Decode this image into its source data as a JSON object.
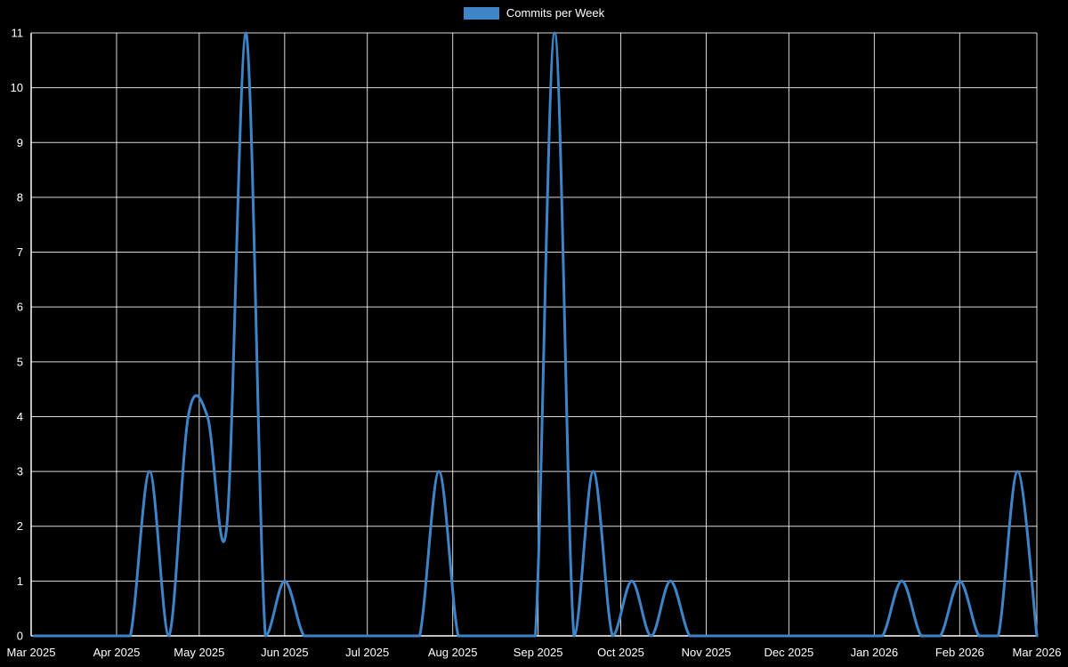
{
  "chart_data": {
    "type": "line",
    "title": "",
    "legend": [
      {
        "label": "Commits per Week",
        "color": "#3d85c8"
      }
    ],
    "legend_position": "top",
    "grid": true,
    "x_unit": "week",
    "x_tick_labels": [
      "Mar 2025",
      "Apr 2025",
      "May 2025",
      "Jun 2025",
      "Jul 2025",
      "Aug 2025",
      "Sep 2025",
      "Oct 2025",
      "Nov 2025",
      "Dec 2025",
      "Jan 2026",
      "Feb 2026",
      "Mar 2026"
    ],
    "y_ticks": [
      0,
      1,
      2,
      3,
      4,
      5,
      6,
      7,
      8,
      9,
      10,
      11
    ],
    "ylim": [
      0,
      11
    ],
    "series": [
      {
        "name": "Commits per Week",
        "values": [
          0,
          0,
          0,
          0,
          0,
          0,
          3,
          0,
          4,
          4,
          2,
          11,
          0,
          1,
          0,
          0,
          0,
          0,
          0,
          0,
          0,
          3,
          0,
          0,
          0,
          0,
          0,
          11,
          0,
          3,
          0,
          1,
          0,
          1,
          0,
          0,
          0,
          0,
          0,
          0,
          0,
          0,
          0,
          0,
          0,
          1,
          0,
          0,
          1,
          0,
          0,
          3,
          0
        ]
      }
    ],
    "colors": {
      "line": "#3d85c8",
      "background": "#000000",
      "grid": "#ffffff",
      "axis": "#ffffff",
      "text": "#ffffff"
    }
  }
}
